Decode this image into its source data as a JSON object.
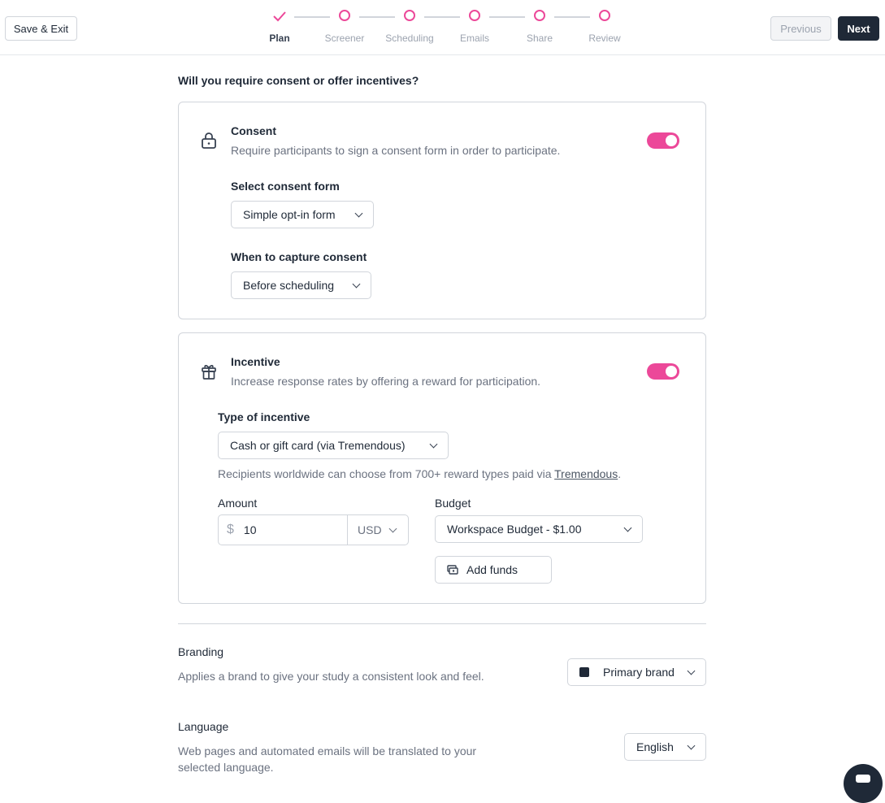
{
  "header": {
    "save_exit": "Save & Exit",
    "previous": "Previous",
    "next": "Next",
    "steps": [
      {
        "label": "Plan",
        "state": "done"
      },
      {
        "label": "Screener"
      },
      {
        "label": "Scheduling"
      },
      {
        "label": "Emails"
      },
      {
        "label": "Share"
      },
      {
        "label": "Review"
      }
    ]
  },
  "question": "Will you require consent or offer incentives?",
  "consent": {
    "title": "Consent",
    "description": "Require participants to sign a consent form in order to participate.",
    "enabled": true,
    "form_label": "Select consent form",
    "form_value": "Simple opt-in form",
    "when_label": "When to capture consent",
    "when_value": "Before scheduling"
  },
  "incentive": {
    "title": "Incentive",
    "description": "Increase response rates by offering a reward for participation.",
    "enabled": true,
    "type_label": "Type of incentive",
    "type_value": "Cash or gift card (via Tremendous)",
    "note": "Recipients worldwide can choose from 700+ reward types paid via ",
    "note_link": "Tremendous",
    "note_end": ".",
    "amount_label": "Amount",
    "currency_symbol": "$",
    "amount": "10",
    "currency": "USD",
    "budget_label": "Budget",
    "budget_value": "Workspace Budget - $1.00",
    "add_funds": "Add funds"
  },
  "branding": {
    "title": "Branding",
    "description": "Applies a brand to give your study a consistent look and feel.",
    "value": "Primary brand"
  },
  "language": {
    "title": "Language",
    "description": "Web pages and automated emails will be translated to your selected language.",
    "value": "English"
  },
  "colors": {
    "accent": "#ec4899",
    "primary": "#1f2937"
  }
}
